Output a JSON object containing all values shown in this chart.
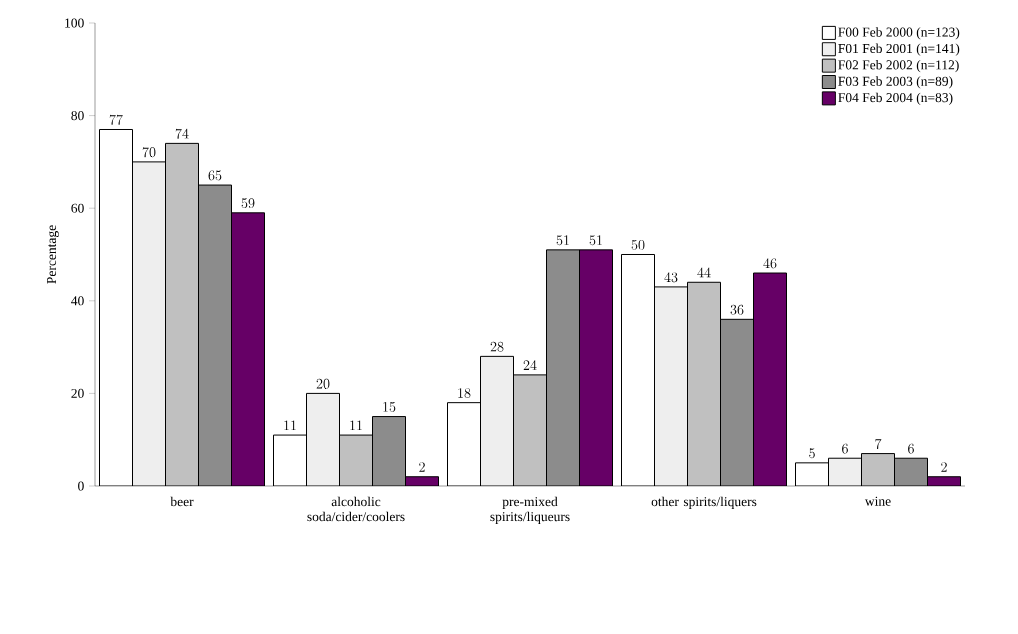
{
  "chart_data": {
    "type": "bar",
    "ylabel": "Percentage",
    "categories": [
      "beer",
      "alcoholic soda/cider/coolers",
      "pre-mixed spirits/liqueurs",
      "other spirits/liquers",
      "wine"
    ],
    "series": [
      {
        "name": "F00 Feb 2000 (n=123)",
        "color": "#ffffff",
        "values": [
          77,
          11,
          18,
          50,
          5
        ]
      },
      {
        "name": "F01 Feb 2001 (n=141)",
        "color": "#eeeeee",
        "values": [
          70,
          20,
          28,
          43,
          6
        ]
      },
      {
        "name": "F02 Feb 2002 (n=112)",
        "color": "#c0c0c0",
        "values": [
          74,
          11,
          24,
          44,
          7
        ]
      },
      {
        "name": "F03 Feb 2003 (n=89)",
        "color": "#8c8c8c",
        "values": [
          65,
          15,
          51,
          36,
          6
        ]
      },
      {
        "name": "F04 Feb 2004 (n=83)",
        "color": "#660066",
        "values": [
          59,
          2,
          51,
          46,
          2
        ]
      }
    ],
    "ylim": [
      0,
      100
    ],
    "yticks": [
      0,
      20,
      40,
      60,
      80,
      100
    ],
    "grid": false,
    "legend": "top right",
    "data_labels": true
  }
}
